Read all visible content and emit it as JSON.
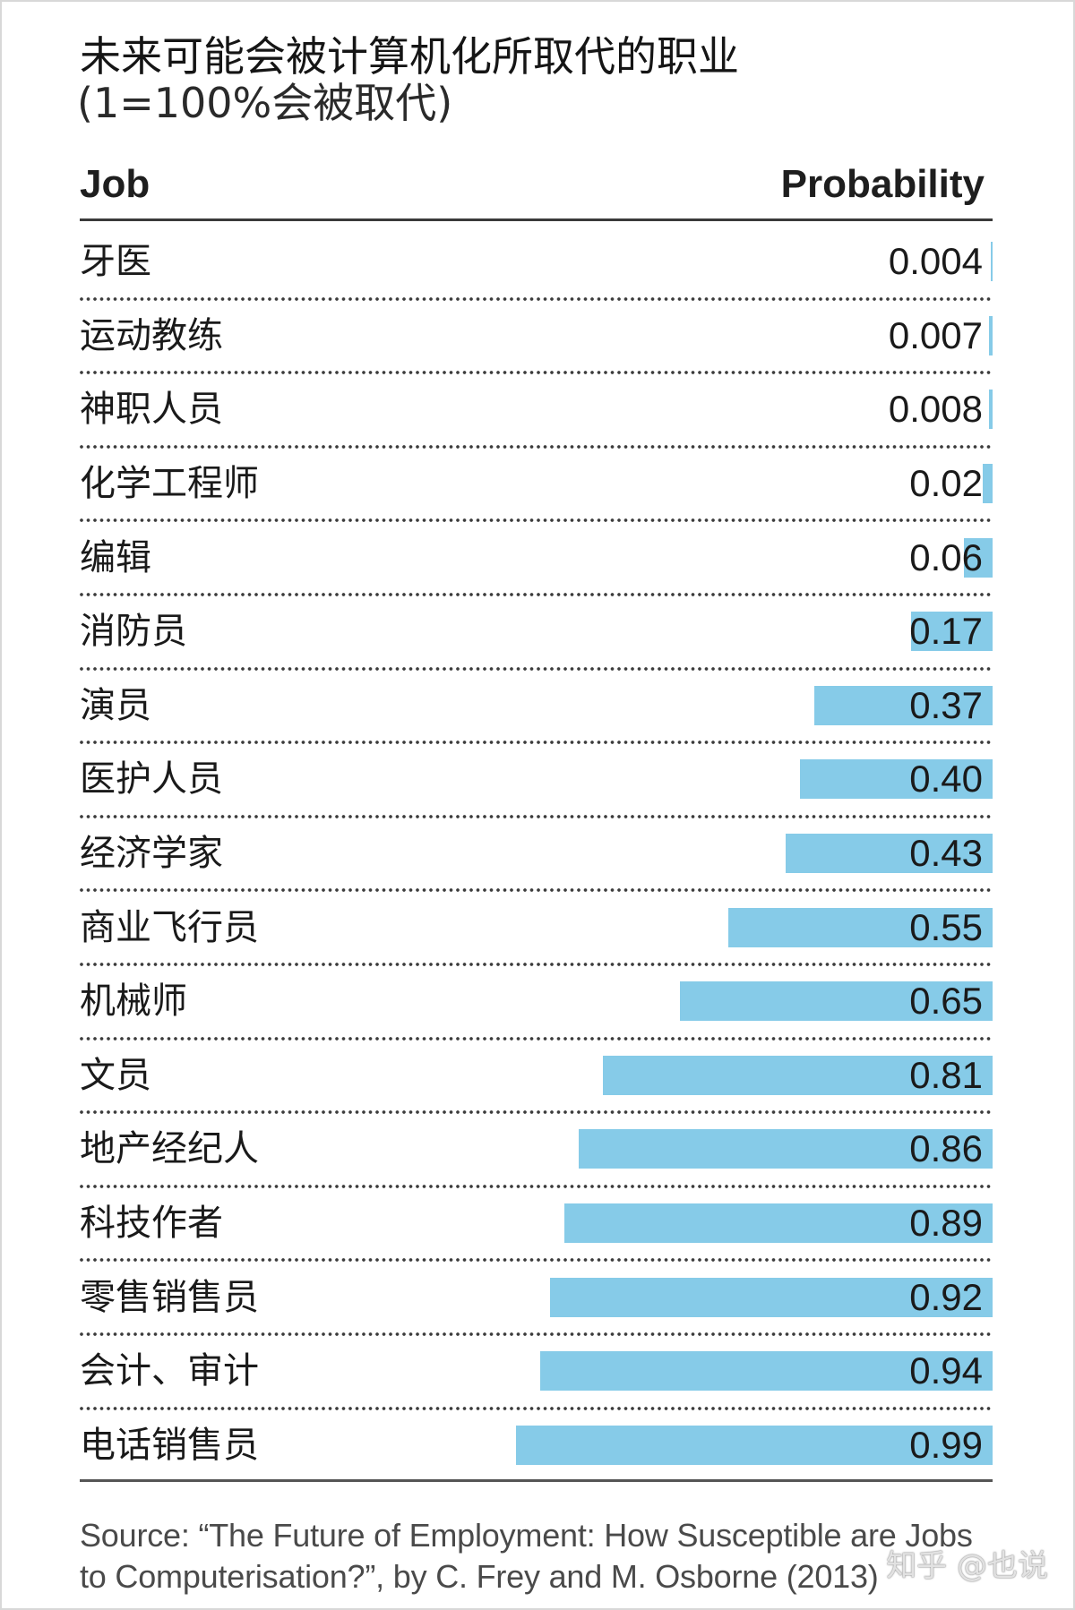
{
  "chart_data": {
    "type": "bar",
    "orientation": "horizontal",
    "title": "未来可能会被计算机化所取代的职业",
    "subtitle": "(1=100%会被取代)",
    "columns": {
      "job": "Job",
      "probability": "Probability"
    },
    "categories": [
      "牙医",
      "运动教练",
      "神职人员",
      "化学工程师",
      "编辑",
      "消防员",
      "演员",
      "医护人员",
      "经济学家",
      "商业飞行员",
      "机械师",
      "文员",
      "地产经纪人",
      "科技作者",
      "零售销售员",
      "会计、审计",
      "电话销售员"
    ],
    "values": [
      0.004,
      0.007,
      0.008,
      0.02,
      0.06,
      0.17,
      0.37,
      0.4,
      0.43,
      0.55,
      0.65,
      0.81,
      0.86,
      0.89,
      0.92,
      0.94,
      0.99
    ],
    "value_labels": [
      "0.004",
      "0.007",
      "0.008",
      "0.02",
      "0.06",
      "0.17",
      "0.37",
      "0.40",
      "0.43",
      "0.55",
      "0.65",
      "0.81",
      "0.86",
      "0.89",
      "0.92",
      "0.94",
      "0.99"
    ],
    "xlim": [
      0,
      1
    ],
    "bar_color": "#86cbe8"
  },
  "source_note": {
    "lines": [
      "Source: “The Future of Employment: How Susceptible are Jobs",
      "to Computerisation?”, by C. Frey and M. Osborne (2013)"
    ]
  },
  "watermark": "知乎 @也说"
}
